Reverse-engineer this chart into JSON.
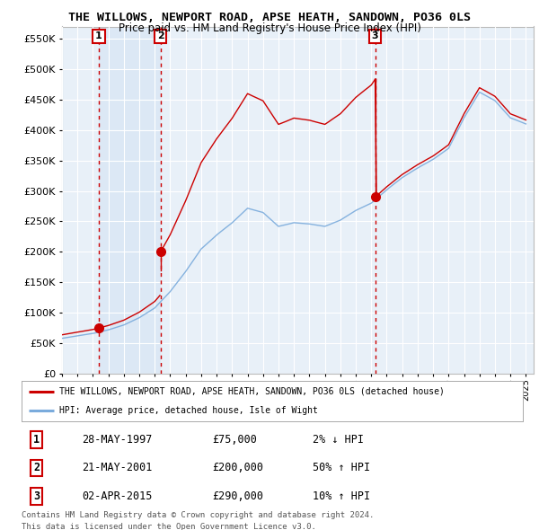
{
  "title": "THE WILLOWS, NEWPORT ROAD, APSE HEATH, SANDOWN, PO36 0LS",
  "subtitle": "Price paid vs. HM Land Registry's House Price Index (HPI)",
  "legend_line1": "THE WILLOWS, NEWPORT ROAD, APSE HEATH, SANDOWN, PO36 0LS (detached house)",
  "legend_line2": "HPI: Average price, detached house, Isle of Wight",
  "footer1": "Contains HM Land Registry data © Crown copyright and database right 2024.",
  "footer2": "This data is licensed under the Open Government Licence v3.0.",
  "transactions": [
    {
      "num": 1,
      "date": "28-MAY-1997",
      "price": 75000,
      "rel": "2% ↓ HPI",
      "year": 1997.38
    },
    {
      "num": 2,
      "date": "21-MAY-2001",
      "price": 200000,
      "rel": "50% ↑ HPI",
      "year": 2001.38
    },
    {
      "num": 3,
      "date": "02-APR-2015",
      "price": 290000,
      "rel": "10% ↑ HPI",
      "year": 2015.25
    }
  ],
  "hpi_color": "#7aabdc",
  "price_color": "#cc0000",
  "dot_color": "#cc0000",
  "vline_color": "#cc0000",
  "shade_color": "#dce8f5",
  "bg_color": "#e8f0f8",
  "grid_color": "#ffffff",
  "ylim": [
    0,
    570000
  ],
  "xlim_start": 1995.0,
  "xlim_end": 2025.5
}
